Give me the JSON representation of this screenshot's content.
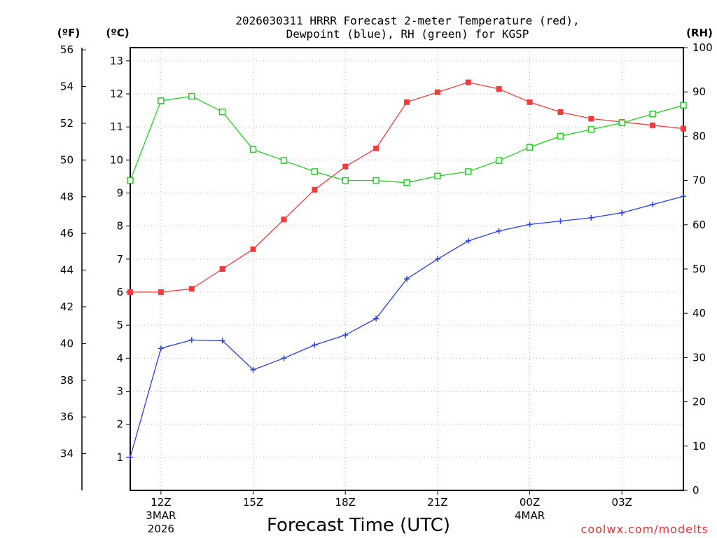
{
  "chart_data": {
    "type": "line",
    "title_line1": "2026030311 HRRR Forecast 2-meter Temperature (red),",
    "title_line2": "Dewpoint (blue), RH (green) for KGSP",
    "xlabel": "Forecast Time (UTC)",
    "credit": "coolwx.com/modelts",
    "units": {
      "fahrenheit": "(ºF)",
      "celsius": "(ºC)",
      "rh": "(RH)"
    },
    "x_hours": [
      11,
      12,
      13,
      14,
      15,
      16,
      17,
      18,
      19,
      20,
      21,
      22,
      23,
      24,
      25,
      26,
      27,
      28,
      29
    ],
    "xlim": [
      11,
      29
    ],
    "x_ticks": [
      {
        "hour": 12,
        "label": "12Z",
        "sub1": "3MAR",
        "sub2": "2026"
      },
      {
        "hour": 15,
        "label": "15Z",
        "sub1": "",
        "sub2": ""
      },
      {
        "hour": 18,
        "label": "18Z",
        "sub1": "",
        "sub2": ""
      },
      {
        "hour": 21,
        "label": "21Z",
        "sub1": "",
        "sub2": ""
      },
      {
        "hour": 24,
        "label": "00Z",
        "sub1": "4MAR",
        "sub2": ""
      },
      {
        "hour": 27,
        "label": "03Z",
        "sub1": "",
        "sub2": ""
      }
    ],
    "celsius_ylim": [
      0,
      13.4
    ],
    "celsius_ticks": [
      "1",
      "2",
      "3",
      "4",
      "5",
      "6",
      "7",
      "8",
      "9",
      "10",
      "11",
      "12",
      "13"
    ],
    "fahrenheit_ticks": [
      "34",
      "36",
      "38",
      "40",
      "42",
      "44",
      "46",
      "48",
      "50",
      "52",
      "54",
      "56"
    ],
    "rh_ylim": [
      0,
      100
    ],
    "rh_ticks": [
      "0",
      "10",
      "20",
      "30",
      "40",
      "50",
      "60",
      "70",
      "80",
      "90",
      "100"
    ],
    "series": [
      {
        "name": "2-meter Temperature",
        "color": "#f03c3c",
        "axis": "celsius",
        "marker": "filled-square",
        "values": [
          6.0,
          6.0,
          6.1,
          6.7,
          7.3,
          8.2,
          9.1,
          9.8,
          10.35,
          11.75,
          12.05,
          12.35,
          12.15,
          11.75,
          11.45,
          11.25,
          11.15,
          11.05,
          10.95
        ]
      },
      {
        "name": "Dewpoint",
        "color": "#2a3de6",
        "axis": "celsius",
        "marker": "plus",
        "values": [
          1.0,
          4.3,
          4.55,
          4.53,
          3.65,
          4.0,
          4.4,
          4.7,
          5.2,
          6.4,
          7.0,
          7.55,
          7.85,
          8.05,
          8.15,
          8.25,
          8.4,
          8.65,
          8.9
        ]
      },
      {
        "name": "RH",
        "color": "#22d022",
        "axis": "rh",
        "marker": "open-square",
        "values": [
          70,
          88,
          89,
          85.5,
          77,
          74.5,
          72,
          70,
          70,
          69.5,
          71,
          72,
          74.5,
          77.5,
          80,
          81.5,
          83,
          85,
          87
        ]
      }
    ]
  }
}
